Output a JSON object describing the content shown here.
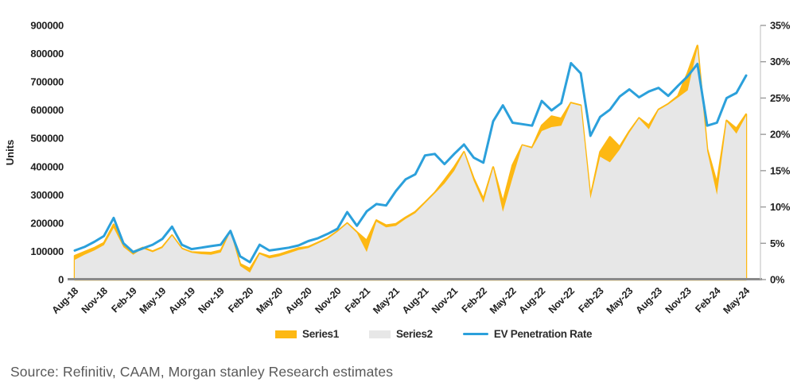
{
  "source_note": "Source: Refinitiv, CAAM, Morgan stanley Research estimates",
  "chart_data": {
    "type": "combo-area-line",
    "title": "",
    "grid": false,
    "legend_position": "bottom",
    "x": [
      "Aug-18",
      "Sep-18",
      "Oct-18",
      "Nov-18",
      "Dec-18",
      "Jan-19",
      "Feb-19",
      "Mar-19",
      "Apr-19",
      "May-19",
      "Jun-19",
      "Jul-19",
      "Aug-19",
      "Sep-19",
      "Oct-19",
      "Nov-19",
      "Dec-19",
      "Jan-20",
      "Feb-20",
      "Mar-20",
      "Apr-20",
      "May-20",
      "Jun-20",
      "Jul-20",
      "Aug-20",
      "Sep-20",
      "Oct-20",
      "Nov-20",
      "Dec-20",
      "Jan-21",
      "Feb-21",
      "Mar-21",
      "Apr-21",
      "May-21",
      "Jun-21",
      "Jul-21",
      "Aug-21",
      "Sep-21",
      "Oct-21",
      "Nov-21",
      "Dec-21",
      "Jan-22",
      "Feb-22",
      "Mar-22",
      "Apr-22",
      "May-22",
      "Jun-22",
      "Jul-22",
      "Aug-22",
      "Sep-22",
      "Oct-22",
      "Nov-22",
      "Dec-22",
      "Jan-23",
      "Feb-23",
      "Mar-23",
      "Apr-23",
      "May-23",
      "Jun-23",
      "Jul-23",
      "Aug-23",
      "Sep-23",
      "Oct-23",
      "Nov-23",
      "Dec-23",
      "Jan-24",
      "Feb-24",
      "Mar-24",
      "Apr-24",
      "May-24"
    ],
    "x_tick_every": 3,
    "x_tick_labels": [
      "Aug-18",
      "Nov-18",
      "Feb-19",
      "May-19",
      "Aug-19",
      "Nov-19",
      "Feb-20",
      "May-20",
      "Aug-20",
      "Nov-20",
      "Feb-21",
      "May-21",
      "Aug-21",
      "Nov-21",
      "Feb-22",
      "May-22",
      "Aug-22",
      "Nov-22",
      "Feb-23",
      "May-23",
      "Aug-23",
      "Nov-23",
      "Feb-24",
      "May-24"
    ],
    "y_left": {
      "label": "Units",
      "min": 0,
      "max": 900000,
      "step": 100000
    },
    "y_right": {
      "label": "",
      "min": 0,
      "max": 35,
      "step": 5,
      "unit": "%"
    },
    "series": [
      {
        "name": "Series1",
        "type": "area",
        "axis": "left",
        "color": "#FDB813",
        "values": [
          84000,
          98000,
          112000,
          130000,
          195000,
          120000,
          98000,
          113000,
          100000,
          115000,
          157000,
          110000,
          97000,
          96000,
          95000,
          103000,
          172000,
          55000,
          38000,
          93000,
          82000,
          89000,
          100000,
          111000,
          116000,
          131000,
          147000,
          171000,
          200000,
          168000,
          138000,
          210000,
          192000,
          197000,
          220000,
          240000,
          273000,
          308000,
          352000,
          398000,
          452000,
          358000,
          285000,
          398000,
          273000,
          405000,
          476000,
          467000,
          545000,
          578000,
          570000,
          626000,
          617000,
          292000,
          452000,
          505000,
          470000,
          525000,
          572000,
          546000,
          602000,
          622000,
          650000,
          732000,
          828000,
          462000,
          340000,
          563000,
          535000,
          585000
        ]
      },
      {
        "name": "Series2",
        "type": "area",
        "axis": "left",
        "color": "#E7E7E7",
        "values": [
          70000,
          88000,
          103000,
          122000,
          183000,
          115000,
          88000,
          110000,
          97000,
          112000,
          155000,
          108000,
          95000,
          90000,
          88000,
          96000,
          169000,
          48000,
          25000,
          90000,
          75000,
          82000,
          93000,
          105000,
          112000,
          128000,
          144000,
          169000,
          198000,
          165000,
          98000,
          205000,
          185000,
          190000,
          215000,
          235000,
          270000,
          305000,
          340000,
          385000,
          450000,
          350000,
          272000,
          395000,
          240000,
          360000,
          475000,
          465000,
          526000,
          540000,
          545000,
          624000,
          615000,
          287000,
          435000,
          415000,
          460000,
          520000,
          570000,
          532000,
          600000,
          620000,
          645000,
          670000,
          820000,
          455000,
          300000,
          560000,
          517000,
          580000
        ]
      },
      {
        "name": "EV Penetration Rate",
        "type": "line",
        "axis": "right",
        "color": "#2BA0DB",
        "values": [
          4.0,
          4.5,
          5.2,
          6.0,
          8.5,
          5.0,
          3.8,
          4.3,
          4.8,
          5.6,
          7.3,
          4.8,
          4.2,
          4.4,
          4.6,
          4.8,
          6.7,
          3.2,
          2.4,
          4.8,
          4.0,
          4.2,
          4.4,
          4.7,
          5.3,
          5.7,
          6.3,
          7.0,
          9.3,
          7.4,
          9.4,
          10.4,
          10.2,
          12.2,
          13.8,
          14.5,
          17.1,
          17.3,
          15.9,
          17.3,
          18.6,
          16.8,
          16.1,
          21.8,
          24.0,
          21.6,
          21.4,
          21.2,
          24.6,
          23.3,
          24.3,
          29.8,
          28.4,
          19.8,
          22.4,
          23.4,
          25.2,
          26.2,
          25.1,
          25.9,
          26.4,
          25.3,
          26.7,
          28.0,
          29.7,
          21.2,
          21.6,
          25.0,
          25.7,
          28.1
        ]
      }
    ],
    "colors": {
      "baseline": "#8A8A8A",
      "right_axis": "#C8C8C8",
      "right_tick": "#9B9B9B",
      "tick_text": "#1f1f1f"
    }
  }
}
